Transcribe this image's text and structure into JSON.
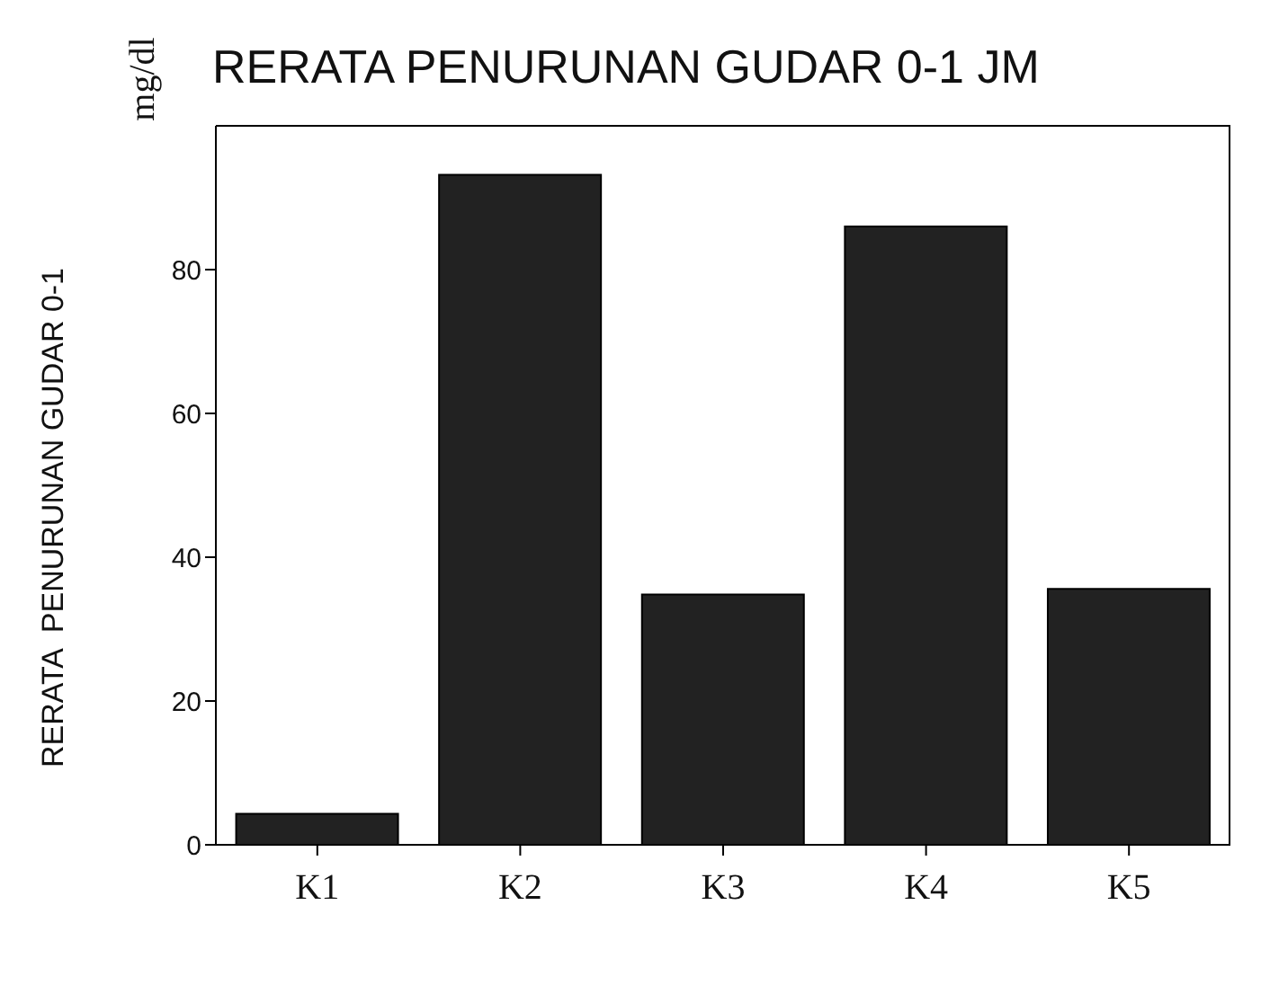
{
  "chart_data": {
    "type": "bar",
    "title": "RERATA  PENURUNAN GUDAR 0-1 JM",
    "ylabel": "RERATA  PENURUNAN GUDAR 0-1",
    "annotations": [
      "mg/dl"
    ],
    "categories": [
      "K1",
      "K2",
      "K3",
      "K4",
      "K5"
    ],
    "values": [
      4.3,
      93.2,
      34.8,
      86,
      35.6
    ],
    "color": "#222222",
    "ylim": [
      0,
      100
    ],
    "yticks": [
      0,
      20,
      40,
      60,
      80
    ]
  }
}
